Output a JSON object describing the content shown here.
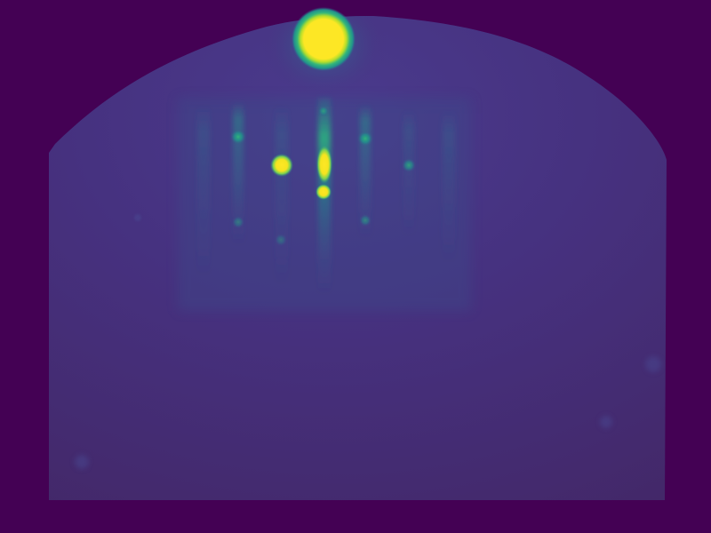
{
  "image": {
    "description_type": "diffraction-pattern",
    "colormap": "viridis",
    "palette": {
      "background": "#440154",
      "screen_base": "#46307f",
      "screen_dark": "#432a6d",
      "glow_mid": "#2f8a8c",
      "glow_bright": "#35b779",
      "spot_core": "#fde725"
    }
  }
}
